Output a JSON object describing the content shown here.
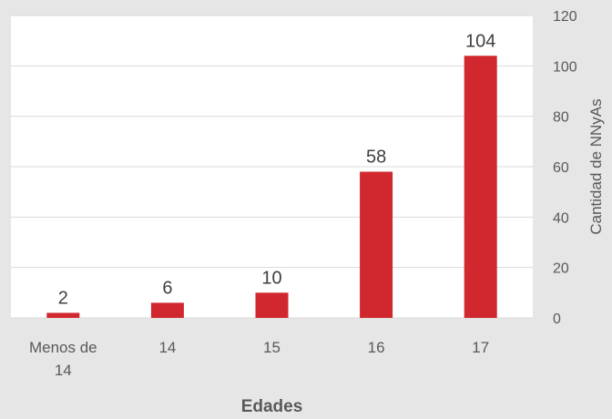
{
  "chart_data": {
    "type": "bar",
    "categories": [
      "Menos de 14",
      "14",
      "15",
      "16",
      "17"
    ],
    "category_lines": [
      [
        "Menos de",
        "14"
      ],
      [
        "14"
      ],
      [
        "15"
      ],
      [
        "16"
      ],
      [
        "17"
      ]
    ],
    "values": [
      2,
      6,
      10,
      58,
      104
    ],
    "data_labels": [
      "2",
      "6",
      "10",
      "58",
      "104"
    ],
    "xlabel": "Edades",
    "ylabel": "Cantidad de NNyAs",
    "ylim": [
      0,
      120
    ],
    "yticks": [
      0,
      20,
      40,
      60,
      80,
      100,
      120
    ],
    "y_axis_position": "right",
    "grid": true,
    "colors": {
      "bar": "#d0282e",
      "plot_background": "#ffffff",
      "page_background": "#e6e6e6",
      "grid": "#d9d9d9",
      "text": "#595959"
    }
  }
}
